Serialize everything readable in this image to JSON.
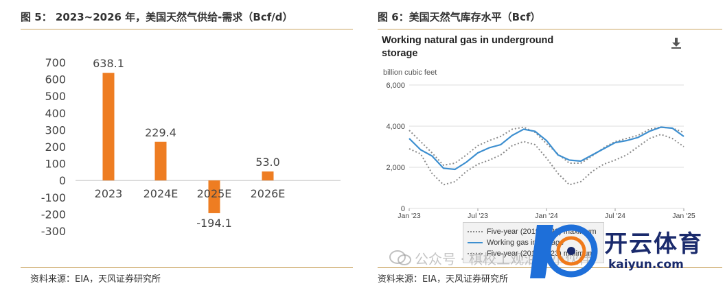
{
  "left": {
    "title": "图 5：  2023~2026 年，美国天然气供给-需求（Bcf/d）",
    "source": "资料来源：EIA，天风证券研究所"
  },
  "right": {
    "title": "图 6：美国天然气库存水平（Bcf）",
    "inner_title_line1": "Working natural gas in underground",
    "inner_title_line2": "storage",
    "unit_label": "billion cubic feet",
    "legend": {
      "max": "Five-year (2019-2023) maximum",
      "working": "Working gas in storage",
      "min": "Five-year (2019-2023) minimum"
    },
    "source": "资料来源：EIA，天风证券研究所"
  },
  "watermark": {
    "text": "公众号 · 棋校工观油气小伙伴"
  },
  "brand": {
    "cn": "开云体育",
    "en": "kaiyun.com"
  },
  "colors": {
    "bar": "#ee7d22",
    "working_line": "#3d8fd0",
    "range_lines": "#8a8a8a",
    "rule": "#c9a35e"
  },
  "chart_data": [
    {
      "type": "bar",
      "title": "",
      "categories": [
        "2023",
        "2024E",
        "2025E",
        "2026E"
      ],
      "values": [
        638.1,
        229.4,
        -194.1,
        53.0
      ],
      "data_labels": [
        "638.1",
        "229.4",
        "-194.1",
        "53.0"
      ],
      "ylim": [
        -300,
        700
      ],
      "yticks": [
        700,
        600,
        500,
        400,
        300,
        200,
        100,
        0,
        -100,
        -200,
        -300
      ],
      "ytick_labels": [
        "700",
        "600",
        "500",
        "400",
        "300",
        "200",
        "100",
        "0",
        "-100",
        "-200",
        "-300"
      ],
      "grid": false,
      "legend": "none"
    },
    {
      "type": "line",
      "title": "Working natural gas in underground storage",
      "ylabel": "billion cubic feet",
      "ylim": [
        0,
        6000
      ],
      "yticks": [
        0,
        2000,
        4000,
        6000
      ],
      "ytick_labels": [
        "0",
        "2,000",
        "4,000",
        "6,000"
      ],
      "x_tick_labels": [
        "Jan '23",
        "Jul '23",
        "Jan '24",
        "Jul '24",
        "Jan '25"
      ],
      "x_ticks": [
        "2023-01",
        "2023-07",
        "2024-01",
        "2024-07",
        "2025-01"
      ],
      "grid": true,
      "legend": "bottom-left",
      "x": [
        "2023-01",
        "2023-02",
        "2023-03",
        "2023-04",
        "2023-05",
        "2023-06",
        "2023-07",
        "2023-08",
        "2023-09",
        "2023-10",
        "2023-11",
        "2023-12",
        "2024-01",
        "2024-02",
        "2024-03",
        "2024-04",
        "2024-05",
        "2024-06",
        "2024-07",
        "2024-08",
        "2024-09",
        "2024-10",
        "2024-11",
        "2024-12",
        "2025-01"
      ],
      "series": [
        {
          "name": "Five-year (2019-2023) maximum",
          "style": "dotted",
          "values": [
            3800,
            3250,
            2700,
            2100,
            2200,
            2600,
            3050,
            3300,
            3500,
            3850,
            3950,
            3700,
            3150,
            2650,
            2200,
            2200,
            2550,
            2950,
            3250,
            3400,
            3550,
            3850,
            3950,
            3900,
            3700
          ]
        },
        {
          "name": "Working gas in storage",
          "style": "solid",
          "values": [
            3400,
            2850,
            2550,
            1950,
            1900,
            2250,
            2700,
            2950,
            3100,
            3550,
            3850,
            3750,
            3300,
            2600,
            2350,
            2300,
            2600,
            2900,
            3200,
            3300,
            3450,
            3750,
            3950,
            3900,
            3500
          ]
        },
        {
          "name": "Five-year (2019-2023) minimum",
          "style": "dotted",
          "values": [
            2900,
            2650,
            1700,
            1150,
            1300,
            1800,
            2150,
            2350,
            2600,
            3050,
            3250,
            3100,
            2450,
            1700,
            1150,
            1300,
            1800,
            2150,
            2350,
            2600,
            3000,
            3400,
            3600,
            3400,
            3000
          ]
        }
      ]
    }
  ]
}
